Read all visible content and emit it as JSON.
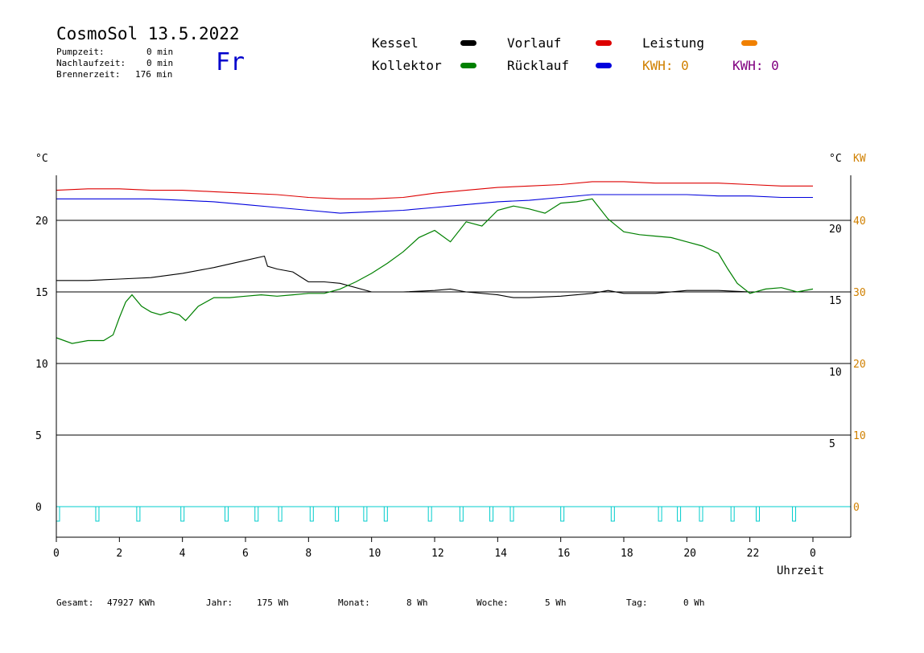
{
  "header": {
    "title": "CosmoSol 13.5.2022",
    "day": "Fr",
    "pumpzeit_label": "Pumpzeit:",
    "pumpzeit_value": "0 min",
    "nachlaufzeit_label": "Nachlaufzeit:",
    "nachlaufzeit_value": "0 min",
    "brennerzeit_label": "Brennerzeit:",
    "brennerzeit_value": "176 min"
  },
  "legend": {
    "kessel": "Kessel",
    "kollektor": "Kollektor",
    "vorlauf": "Vorlauf",
    "ruecklauf": "Rücklauf",
    "leistung": "Leistung",
    "kwh1": "KWH: 0",
    "kwh2": "KWH: 0",
    "colors": {
      "kessel": "#000000",
      "kollektor": "#008000",
      "vorlauf": "#dd0000",
      "ruecklauf": "#0000dd",
      "leistung": "#f08000",
      "kwh1": "#d08000",
      "kwh2": "#800080",
      "pump": "#00cccc"
    }
  },
  "axes": {
    "left_unit": "°C",
    "right_unit_c": "°C",
    "right_unit_kw": "KW",
    "xlabel": "Uhrzeit",
    "x_ticks": [
      "0",
      "2",
      "4",
      "6",
      "8",
      "10",
      "12",
      "14",
      "16",
      "18",
      "20",
      "22",
      "0"
    ],
    "y_left_ticks": [
      "20",
      "15",
      "10",
      "5",
      "0"
    ],
    "y_right_ticks": [
      "20",
      "15",
      "10",
      "5"
    ],
    "kw_ticks": [
      "40",
      "30",
      "20",
      "10",
      "0"
    ]
  },
  "chart_data": {
    "type": "line",
    "xlabel": "Uhrzeit",
    "ylabel": "°C",
    "xlim": [
      0,
      24
    ],
    "ylim": [
      -2,
      23.5
    ],
    "y2lim": [
      -4,
      47
    ],
    "grid": true,
    "series": [
      {
        "name": "Vorlauf",
        "x": [
          0,
          1,
          2,
          3,
          4,
          5,
          6,
          7,
          8,
          9,
          10,
          11,
          12,
          13,
          14,
          15,
          16,
          17,
          18,
          19,
          20,
          21,
          22,
          23,
          24
        ],
        "values": [
          22.1,
          22.2,
          22.2,
          22.1,
          22.1,
          22.0,
          21.9,
          21.8,
          21.6,
          21.5,
          21.5,
          21.6,
          21.9,
          22.1,
          22.3,
          22.4,
          22.5,
          22.7,
          22.7,
          22.6,
          22.6,
          22.6,
          22.5,
          22.4,
          22.4
        ]
      },
      {
        "name": "Rücklauf",
        "x": [
          0,
          1,
          2,
          3,
          4,
          5,
          6,
          7,
          8,
          9,
          10,
          11,
          12,
          13,
          14,
          15,
          16,
          17,
          18,
          19,
          20,
          21,
          22,
          23,
          24
        ],
        "values": [
          21.5,
          21.5,
          21.5,
          21.5,
          21.4,
          21.3,
          21.1,
          20.9,
          20.7,
          20.5,
          20.6,
          20.7,
          20.9,
          21.1,
          21.3,
          21.4,
          21.6,
          21.8,
          21.8,
          21.8,
          21.8,
          21.7,
          21.7,
          21.6,
          21.6
        ]
      },
      {
        "name": "Kessel",
        "x": [
          0,
          1,
          2,
          3,
          4,
          5,
          6,
          6.6,
          6.7,
          7,
          7.5,
          8,
          8.5,
          9,
          10,
          11,
          12,
          12.5,
          13,
          14,
          14.5,
          15,
          16,
          17,
          17.5,
          18,
          19,
          20,
          20.5,
          21,
          22,
          23,
          24
        ],
        "values": [
          15.8,
          15.8,
          15.9,
          16.0,
          16.3,
          16.7,
          17.2,
          17.5,
          16.8,
          16.6,
          16.4,
          15.7,
          15.7,
          15.6,
          15.0,
          15.0,
          15.1,
          15.2,
          15.0,
          14.8,
          14.6,
          14.6,
          14.7,
          14.9,
          15.1,
          14.9,
          14.9,
          15.1,
          15.1,
          15.1,
          15.0,
          15.0,
          15.0
        ]
      },
      {
        "name": "Kollektor",
        "x": [
          0,
          0.5,
          1,
          1.5,
          1.8,
          2,
          2.2,
          2.4,
          2.7,
          3,
          3.3,
          3.6,
          3.9,
          4.1,
          4.5,
          5,
          5.5,
          6,
          6.5,
          7,
          7.5,
          8,
          8.5,
          9,
          9.5,
          10,
          10.5,
          11,
          11.5,
          12,
          12.5,
          13,
          13.5,
          14,
          14.5,
          15,
          15.5,
          16,
          16.5,
          17,
          17.5,
          18,
          18.5,
          19,
          19.5,
          20,
          20.5,
          21,
          21.3,
          21.6,
          22,
          22.5,
          23,
          23.5,
          24
        ],
        "values": [
          11.8,
          11.4,
          11.6,
          11.6,
          12.0,
          13.2,
          14.3,
          14.8,
          14.0,
          13.6,
          13.4,
          13.6,
          13.4,
          13.0,
          14.0,
          14.6,
          14.6,
          14.7,
          14.8,
          14.7,
          14.8,
          14.9,
          14.9,
          15.2,
          15.7,
          16.3,
          17.0,
          17.8,
          18.8,
          19.3,
          18.5,
          19.9,
          19.6,
          20.7,
          21.0,
          20.8,
          20.5,
          21.2,
          21.3,
          21.5,
          20.1,
          19.2,
          19.0,
          18.9,
          18.8,
          18.5,
          18.2,
          17.7,
          16.6,
          15.6,
          14.9,
          15.2,
          15.3,
          15.0,
          15.2
        ]
      }
    ],
    "pump_on_hours": [
      0,
      1.25,
      2.55,
      3.95,
      5.35,
      6.3,
      7.05,
      8.05,
      8.85,
      9.75,
      10.4,
      11.8,
      12.8,
      13.75,
      14.4,
      16.0,
      17.6,
      19.1,
      19.7,
      20.4,
      21.4,
      22.2,
      23.35
    ]
  },
  "footer": {
    "gesamt_label": "Gesamt:",
    "gesamt_value": "47927 KWh",
    "jahr_label": "Jahr:",
    "jahr_value": "175 Wh",
    "monat_label": "Monat:",
    "monat_value": "8 Wh",
    "woche_label": "Woche:",
    "woche_value": "5 Wh",
    "tag_label": "Tag:",
    "tag_value": "0 Wh"
  }
}
